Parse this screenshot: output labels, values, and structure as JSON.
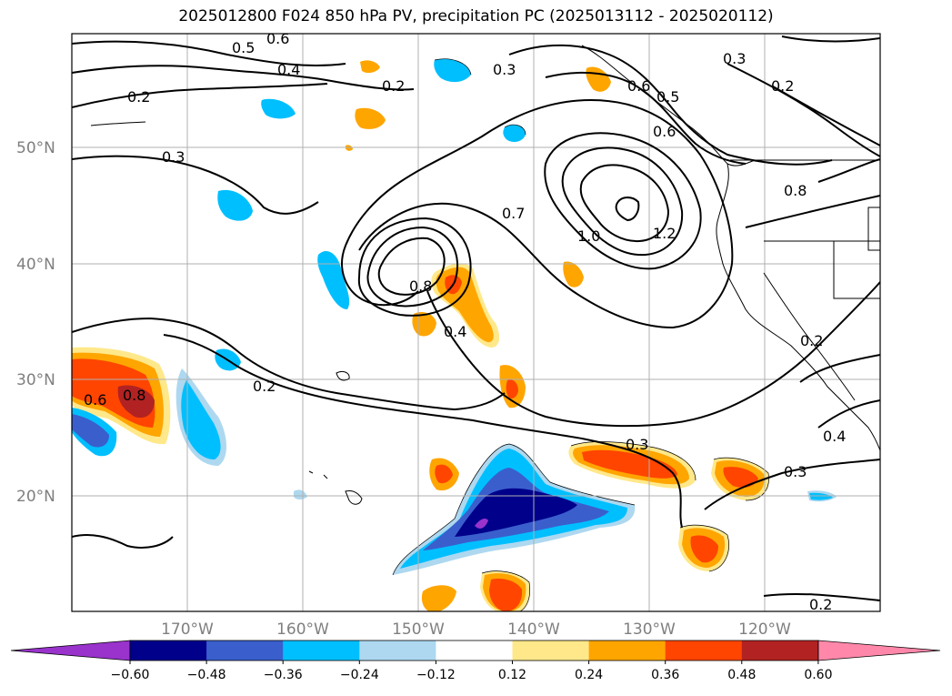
{
  "title": "2025012800 F024 850 hPa PV, precipitation PC (2025013112 - 2025020112)",
  "lat_labels": [
    "50°N",
    "40°N",
    "30°N",
    "20°N"
  ],
  "lon_labels": [
    "170°W",
    "160°W",
    "150°W",
    "140°W",
    "130°W",
    "120°W"
  ],
  "colorbar": {
    "ticks": [
      "−0.60",
      "−0.48",
      "−0.36",
      "−0.24",
      "−0.12",
      "0.12",
      "0.24",
      "0.36",
      "0.48",
      "0.60"
    ],
    "colors": [
      "#9933cc",
      "#00008b",
      "#3a5fcd",
      "#00bfff",
      "#add8f0",
      "#ffffff",
      "#ffe88a",
      "#ffa500",
      "#ff4500",
      "#b22222",
      "#ff88aa"
    ]
  },
  "contour_labels": [
    "0.6",
    "0.5",
    "0.4",
    "0.2",
    "0.2",
    "0.3",
    "0.3",
    "0.3",
    "0.2",
    "0.5",
    "0.6",
    "0.6",
    "0.8",
    "0.7",
    "1.0",
    "1.2",
    "0.8",
    "0.4",
    "0.2",
    "0.3",
    "0.3",
    "0.2",
    "0.4",
    "0.2",
    "0.6",
    "0.8"
  ],
  "colors": {
    "negative_strong": "#00008b",
    "negative_mid": "#3a5fcd",
    "negative_light": "#00bfff",
    "positive_light": "#ffe88a",
    "positive_mid": "#ffa500",
    "positive_strong": "#ff4500",
    "positive_max": "#b22222"
  }
}
